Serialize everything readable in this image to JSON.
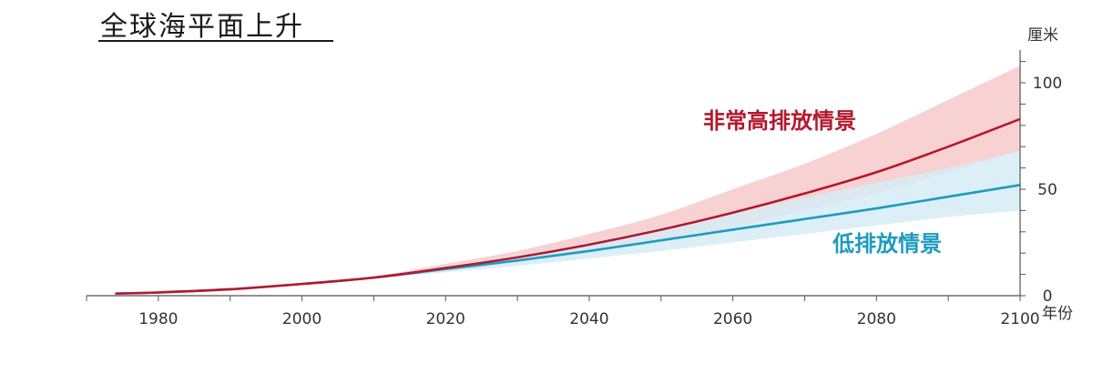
{
  "chart_data": {
    "type": "line",
    "title": "全球海平面上升",
    "ylabel": "厘米",
    "xlabel": "年份",
    "x_ticks": [
      1980,
      2000,
      2020,
      2040,
      2060,
      2080,
      2100
    ],
    "y_ticks": [
      0,
      50,
      100
    ],
    "xlim": [
      1970,
      2100
    ],
    "ylim": [
      0,
      115
    ],
    "series": [
      {
        "name": "非常高排放情景",
        "color": "#b5172d",
        "band_color": "#f7cdcd",
        "x": [
          1974,
          1980,
          1990,
          2000,
          2010,
          2020,
          2030,
          2040,
          2050,
          2060,
          2070,
          2080,
          2090,
          2100
        ],
        "values": [
          1,
          1.5,
          3,
          5.5,
          8.5,
          13,
          18,
          24,
          31,
          39,
          48,
          58,
          70,
          83
        ],
        "upper": [
          1,
          1.5,
          3,
          5.5,
          9,
          15,
          21,
          29,
          38,
          50,
          62,
          76,
          92,
          108
        ],
        "lower": [
          1,
          1.5,
          3,
          5.5,
          8,
          11.5,
          15.5,
          20,
          25.5,
          32,
          40,
          48,
          58,
          68
        ]
      },
      {
        "name": "低排放情景",
        "color": "#1e9bbf",
        "band_color": "#d6ecf6",
        "x": [
          1974,
          1980,
          1990,
          2000,
          2010,
          2020,
          2030,
          2040,
          2050,
          2060,
          2070,
          2080,
          2090,
          2100
        ],
        "values": [
          1,
          1.5,
          3,
          5.5,
          8.5,
          12.5,
          16.5,
          21,
          26,
          31,
          36,
          41,
          46.5,
          52
        ],
        "upper": [
          1,
          1.5,
          3,
          5.5,
          9,
          14,
          19,
          25,
          32,
          39,
          46,
          53,
          60,
          68
        ],
        "lower": [
          1,
          1.5,
          3,
          5.5,
          8,
          11,
          14,
          17.5,
          21,
          25,
          29,
          33,
          37,
          40
        ]
      }
    ]
  }
}
